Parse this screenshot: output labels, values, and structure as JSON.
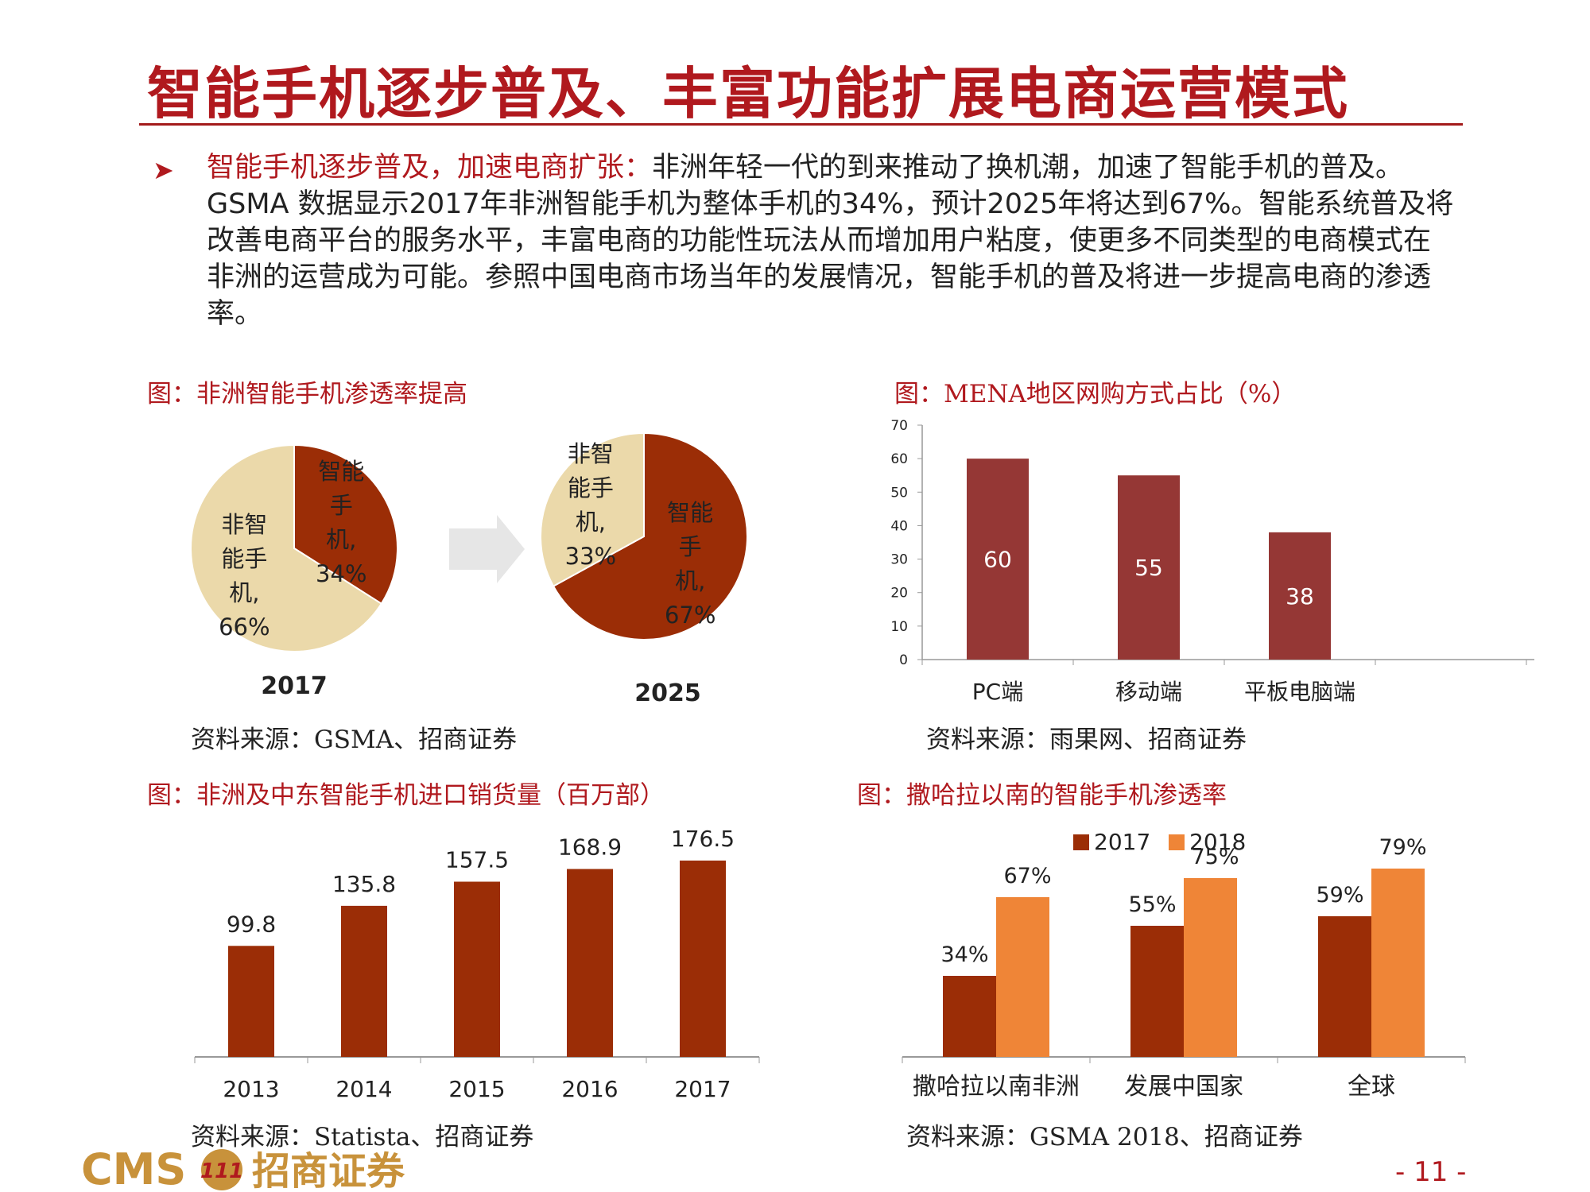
{
  "header": {
    "title": "智能手机逐步普及、丰富功能扩展电商运营模式"
  },
  "bullet": {
    "icon": "arrow-bullet-icon",
    "lead": "智能手机逐步普及，加速电商扩张：",
    "body": "非洲年轻一代的到来推动了换机潮，加速了智能手机的普及。 GSMA 数据显示2017年非洲智能手机为整体手机的34%，预计2025年将达到67%。智能系统普及将改善电商平台的服务水平，丰富电商的功能性玩法从而增加用户粘度，使更多不同类型的电商模式在非洲的运营成为可能。参照中国电商市场当年的发展情况，智能手机的普及将进一步提高电商的渗透率。"
  },
  "charts": {
    "pie": {
      "caption": "图：非洲智能手机渗透率提高",
      "source": "资料来源：GSMA、招商证券",
      "arrow_icon": "right-arrow-icon",
      "pie2017": {
        "year": "2017",
        "smart_label": [
          "智能",
          "手",
          "机,",
          "34%"
        ],
        "non_label": [
          "非智",
          "能手",
          "机,",
          "66%"
        ]
      },
      "pie2025": {
        "year": "2025",
        "smart_label": [
          "智能",
          "手",
          "机,",
          "67%"
        ],
        "non_label": [
          "非智",
          "能手",
          "机,",
          "33%"
        ]
      }
    },
    "mena": {
      "caption": "图：MENA地区网购方式占比（%）",
      "source": "资料来源：雨果网、招商证券",
      "y_ticks": [
        "0",
        "10",
        "20",
        "30",
        "40",
        "50",
        "60",
        "70"
      ],
      "categories": [
        "PC端",
        "移动端",
        "平板电脑端"
      ],
      "value_labels": [
        "60",
        "55",
        "38"
      ]
    },
    "imports": {
      "caption": "图：非洲及中东智能手机进口销货量（百万部）",
      "source": "资料来源：Statista、招商证券",
      "categories": [
        "2013",
        "2014",
        "2015",
        "2016",
        "2017"
      ],
      "value_labels": [
        "99.8",
        "135.8",
        "157.5",
        "168.9",
        "176.5"
      ]
    },
    "ssa": {
      "caption": "图：撒哈拉以南的智能手机渗透率",
      "source": "资料来源：GSMA 2018、招商证券",
      "legend": [
        "2017",
        "2018"
      ],
      "categories": [
        "撒哈拉以南非洲",
        "发展中国家",
        "全球"
      ],
      "labels_2017": [
        "34%",
        "55%",
        "59%"
      ],
      "labels_2018": [
        "67%",
        "75%",
        "79%"
      ]
    }
  },
  "footer": {
    "logo_text": "CMS",
    "logo_badge": "111",
    "logo_cn": "招商证券",
    "page": "- 11 -"
  },
  "colors": {
    "brand_red": "#b0191e",
    "smart_brown": "#9b2d06",
    "beige": "#ebd9aa",
    "mena_bar": "#953735",
    "orange": "#ef8537",
    "logo_gold": "#c8923b"
  },
  "chart_data": [
    {
      "type": "pie",
      "title": "2017",
      "categories": [
        "智能手机",
        "非智能手机"
      ],
      "values": [
        34,
        66
      ]
    },
    {
      "type": "pie",
      "title": "2025",
      "categories": [
        "智能手机",
        "非智能手机"
      ],
      "values": [
        67,
        33
      ]
    },
    {
      "type": "bar",
      "title": "图：MENA地区网购方式占比（%）",
      "categories": [
        "PC端",
        "移动端",
        "平板电脑端"
      ],
      "values": [
        60,
        55,
        38
      ],
      "ylim": [
        0,
        70
      ],
      "grid": false
    },
    {
      "type": "bar",
      "title": "图：非洲及中东智能手机进口销货量（百万部）",
      "categories": [
        "2013",
        "2014",
        "2015",
        "2016",
        "2017"
      ],
      "values": [
        99.8,
        135.8,
        157.5,
        168.9,
        176.5
      ],
      "grid": false
    },
    {
      "type": "bar",
      "title": "图：撒哈拉以南的智能手机渗透率",
      "categories": [
        "撒哈拉以南非洲",
        "发展中国家",
        "全球"
      ],
      "series": [
        {
          "name": "2017",
          "values": [
            34,
            55,
            59
          ]
        },
        {
          "name": "2018",
          "values": [
            67,
            75,
            79
          ]
        }
      ],
      "legend": "top-center",
      "grid": false
    }
  ]
}
